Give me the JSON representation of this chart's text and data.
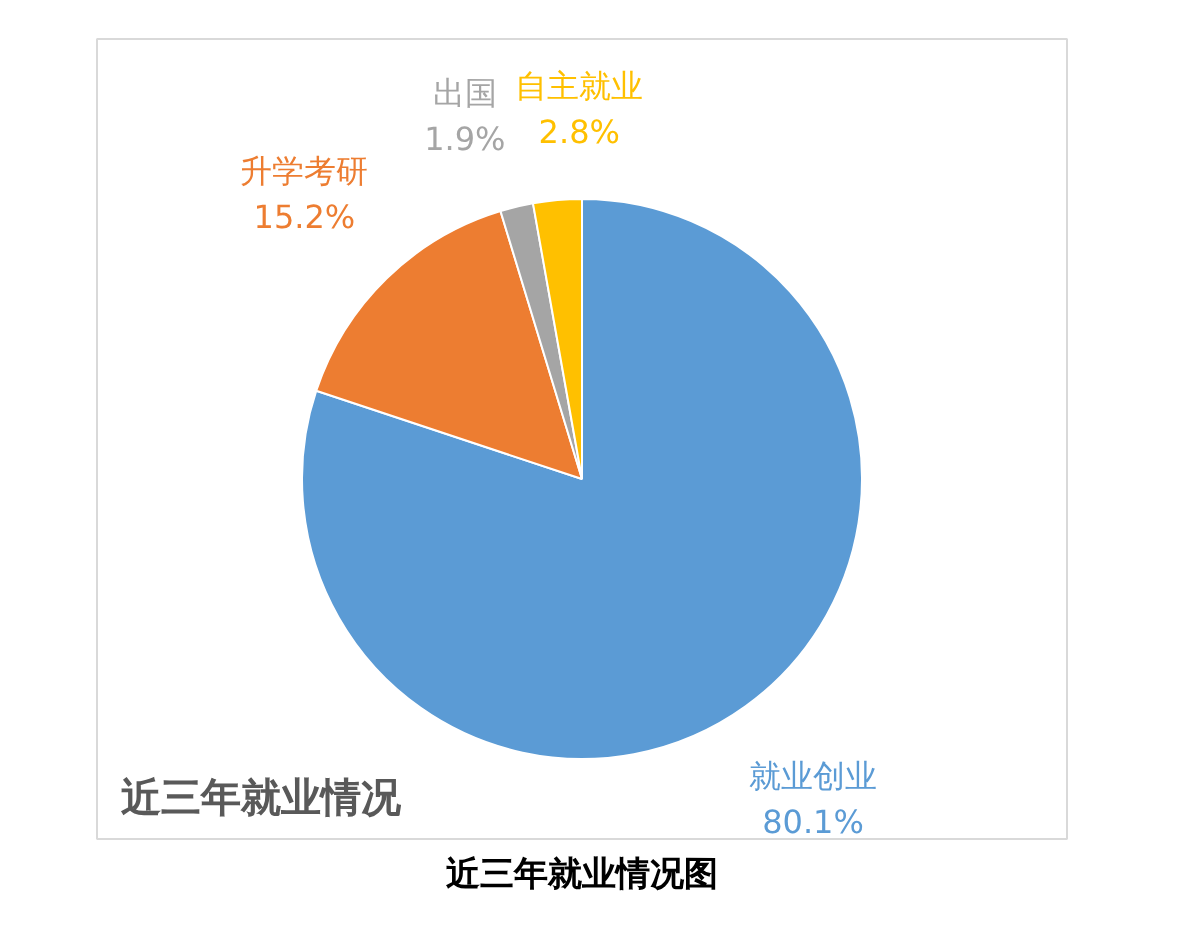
{
  "chart_data": {
    "type": "pie",
    "title": "近三年就业情况",
    "categories": [
      "就业创业",
      "升学考研",
      "出国",
      "自主就业"
    ],
    "values": [
      80.1,
      15.2,
      1.9,
      2.8
    ],
    "colors": [
      "#5b9bd5",
      "#ed7d31",
      "#a5a5a5",
      "#ffc000"
    ],
    "value_labels": [
      "80.1%",
      "15.2%",
      "1.9%",
      "2.8%"
    ],
    "annotations": [
      "近三年就业情况图"
    ]
  }
}
